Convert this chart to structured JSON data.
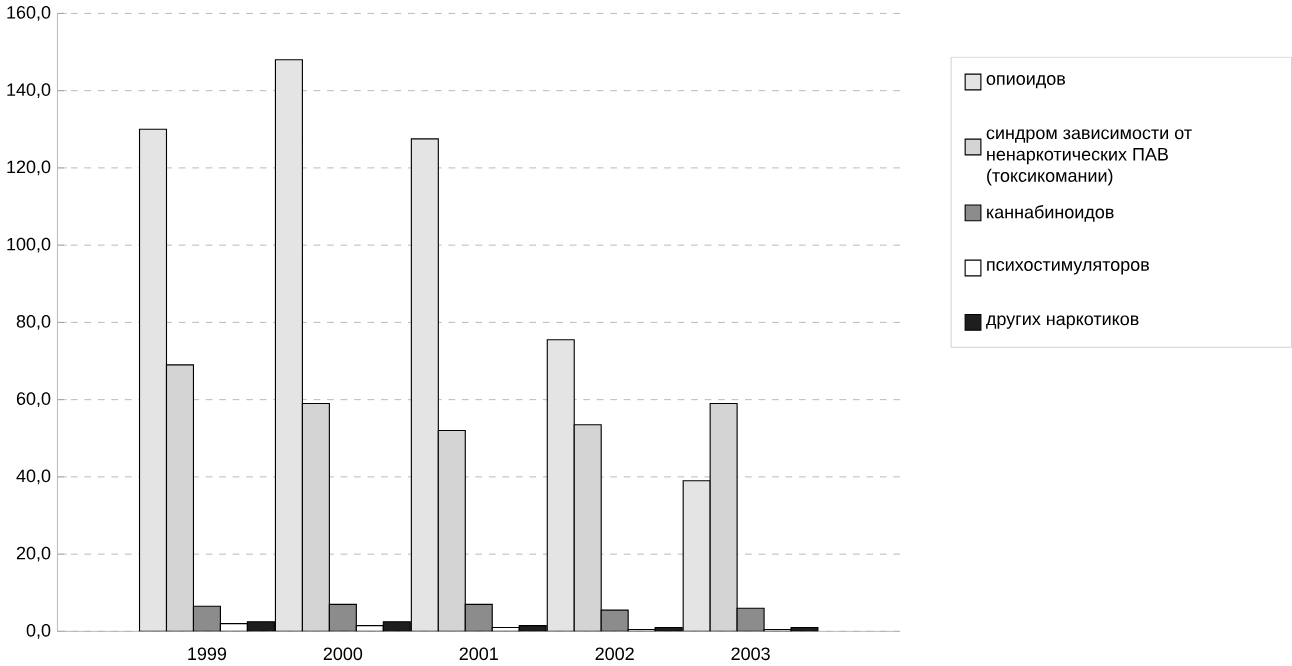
{
  "chart_data": {
    "type": "bar",
    "categories": [
      "1999",
      "2000",
      "2001",
      "2002",
      "2003"
    ],
    "series": [
      {
        "name": "опиоидов",
        "color": "#e4e4e4",
        "values": [
          130,
          148,
          127.5,
          75.5,
          39
        ]
      },
      {
        "name": "синдром зависимости от ненаркотических ПАВ (токсикомании)",
        "color": "#d4d4d4",
        "values": [
          69,
          59,
          52,
          53.5,
          59
        ]
      },
      {
        "name": "каннабиноидов",
        "color": "#8c8c8c",
        "values": [
          6.5,
          7,
          7,
          5.5,
          6
        ]
      },
      {
        "name": "психостимуляторов",
        "color": "#ffffff",
        "values": [
          2,
          1.5,
          1,
          0.5,
          0.5
        ]
      },
      {
        "name": "других наркотиков",
        "color": "#1e1e1e",
        "values": [
          2.5,
          2.5,
          1.5,
          1,
          1
        ]
      }
    ],
    "ylim": [
      0,
      160
    ],
    "yticks": [
      {
        "value": 0,
        "label": "0,0"
      },
      {
        "value": 20,
        "label": "20,0"
      },
      {
        "value": 40,
        "label": "40,0"
      },
      {
        "value": 60,
        "label": "60,0"
      },
      {
        "value": 80,
        "label": "80,0"
      },
      {
        "value": 100,
        "label": "100,0"
      },
      {
        "value": 120,
        "label": "120,0"
      },
      {
        "value": 140,
        "label": "140,0"
      },
      {
        "value": 160,
        "label": "160,0"
      }
    ],
    "grid": "y",
    "legend": "right"
  }
}
